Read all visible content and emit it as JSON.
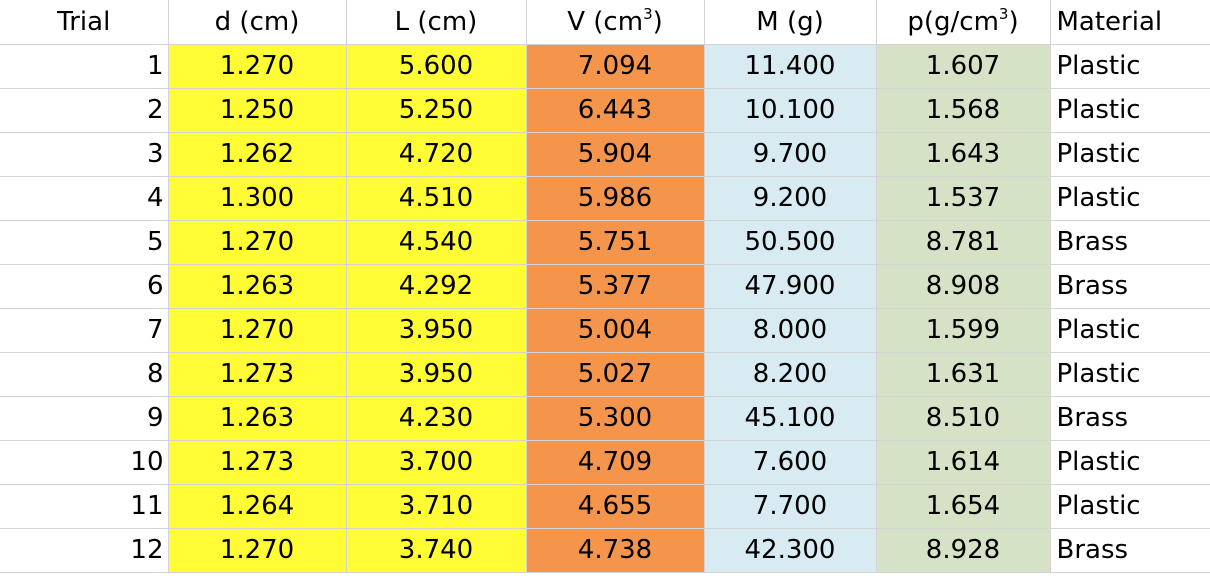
{
  "headers": {
    "trial": "Trial",
    "d": "d (cm)",
    "L": "L (cm)",
    "V_prefix": "V (cm",
    "V_sup": "3",
    "V_suffix": ")",
    "M": "M (g)",
    "p_prefix": "p(g/cm",
    "p_sup": "3",
    "p_suffix": ")",
    "material": "Material"
  },
  "colors": {
    "d_L": "#fffb34",
    "V": "#f5954b",
    "M": "#d8ebf2",
    "p": "#d6e2c5"
  },
  "rows": [
    {
      "trial": "1",
      "d": "1.270",
      "L": "5.600",
      "V": "7.094",
      "M": "11.400",
      "p": "1.607",
      "material": "Plastic"
    },
    {
      "trial": "2",
      "d": "1.250",
      "L": "5.250",
      "V": "6.443",
      "M": "10.100",
      "p": "1.568",
      "material": "Plastic"
    },
    {
      "trial": "3",
      "d": "1.262",
      "L": "4.720",
      "V": "5.904",
      "M": "9.700",
      "p": "1.643",
      "material": "Plastic"
    },
    {
      "trial": "4",
      "d": "1.300",
      "L": "4.510",
      "V": "5.986",
      "M": "9.200",
      "p": "1.537",
      "material": "Plastic"
    },
    {
      "trial": "5",
      "d": "1.270",
      "L": "4.540",
      "V": "5.751",
      "M": "50.500",
      "p": "8.781",
      "material": "Brass"
    },
    {
      "trial": "6",
      "d": "1.263",
      "L": "4.292",
      "V": "5.377",
      "M": "47.900",
      "p": "8.908",
      "material": "Brass"
    },
    {
      "trial": "7",
      "d": "1.270",
      "L": "3.950",
      "V": "5.004",
      "M": "8.000",
      "p": "1.599",
      "material": "Plastic"
    },
    {
      "trial": "8",
      "d": "1.273",
      "L": "3.950",
      "V": "5.027",
      "M": "8.200",
      "p": "1.631",
      "material": "Plastic"
    },
    {
      "trial": "9",
      "d": "1.263",
      "L": "4.230",
      "V": "5.300",
      "M": "45.100",
      "p": "8.510",
      "material": "Brass"
    },
    {
      "trial": "10",
      "d": "1.273",
      "L": "3.700",
      "V": "4.709",
      "M": "7.600",
      "p": "1.614",
      "material": "Plastic"
    },
    {
      "trial": "11",
      "d": "1.264",
      "L": "3.710",
      "V": "4.655",
      "M": "7.700",
      "p": "1.654",
      "material": "Plastic"
    },
    {
      "trial": "12",
      "d": "1.270",
      "L": "3.740",
      "V": "4.738",
      "M": "42.300",
      "p": "8.928",
      "material": "Brass"
    }
  ]
}
